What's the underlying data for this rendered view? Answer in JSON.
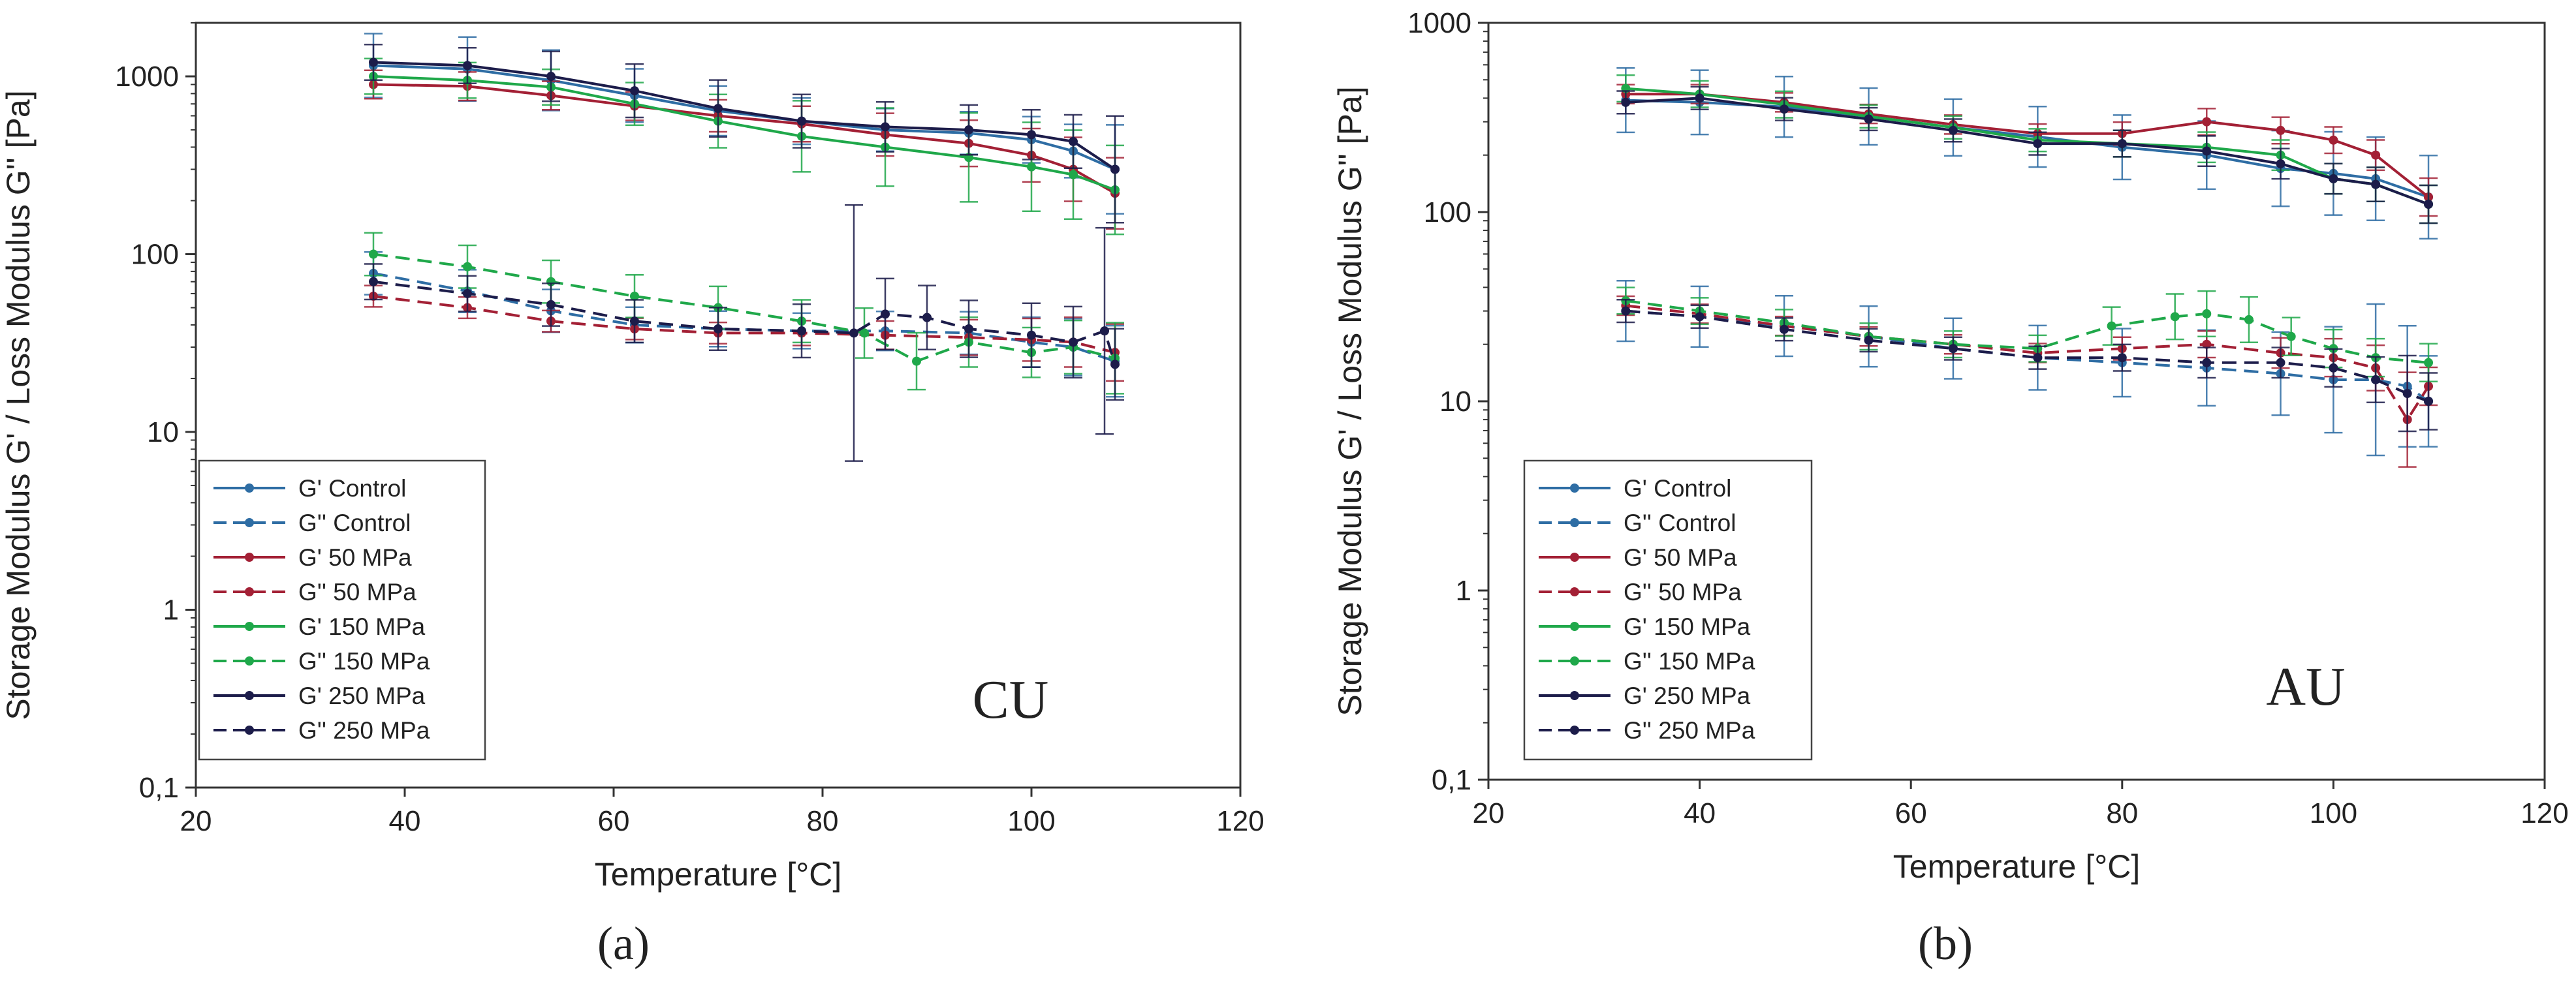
{
  "chart_data": [
    {
      "type": "line",
      "panel_tag": "CU",
      "sublabel": "(a)",
      "xlabel": "Temperature [°C]",
      "ylabel": "Storage Modulus G' / Loss Modulus G'' [Pa]",
      "xlim": [
        20,
        120
      ],
      "ylim": [
        0.1,
        2000
      ],
      "yscale": "log",
      "xticks": [
        20,
        40,
        60,
        80,
        100,
        120
      ],
      "yticks": [
        {
          "v": 0.1,
          "label": "0,1"
        },
        {
          "v": 1,
          "label": "1"
        },
        {
          "v": 10,
          "label": "10"
        },
        {
          "v": 100,
          "label": "100"
        },
        {
          "v": 1000,
          "label": "1000"
        }
      ],
      "grid": false,
      "legend_position": "lower-left",
      "series": [
        {
          "name": "G' Control",
          "color": "#2e6da4",
          "dash": "solid",
          "x": [
            37,
            46,
            54,
            62,
            70,
            78,
            86,
            94,
            100,
            104,
            108
          ],
          "y": [
            1150,
            1100,
            950,
            780,
            640,
            560,
            500,
            480,
            440,
            380,
            300
          ],
          "err": [
            0.18,
            0.18,
            0.17,
            0.15,
            0.14,
            0.13,
            0.12,
            0.12,
            0.13,
            0.15,
            0.25
          ]
        },
        {
          "name": "G'' Control",
          "color": "#2e6da4",
          "dash": "dashed",
          "x": [
            37,
            46,
            54,
            62,
            70,
            78,
            86,
            94,
            100,
            104,
            108
          ],
          "y": [
            78,
            62,
            48,
            40,
            38,
            37,
            37,
            36,
            32,
            30,
            25
          ],
          "err": [
            0.12,
            0.12,
            0.12,
            0.1,
            0.1,
            0.1,
            0.11,
            0.12,
            0.14,
            0.16,
            0.2
          ]
        },
        {
          "name": "G' 50 MPa",
          "color": "#a32035",
          "dash": "solid",
          "x": [
            37,
            46,
            54,
            62,
            70,
            78,
            86,
            94,
            100,
            104,
            108
          ],
          "y": [
            900,
            880,
            780,
            680,
            600,
            540,
            470,
            420,
            360,
            300,
            220
          ],
          "err": [
            0.08,
            0.08,
            0.08,
            0.08,
            0.09,
            0.1,
            0.12,
            0.13,
            0.15,
            0.18,
            0.2
          ]
        },
        {
          "name": "G'' 50 MPa",
          "color": "#a32035",
          "dash": "dashed",
          "x": [
            37,
            46,
            54,
            62,
            70,
            78,
            86,
            94,
            100,
            104,
            108
          ],
          "y": [
            58,
            50,
            42,
            38,
            36,
            36,
            35,
            34,
            33,
            32,
            28
          ],
          "err": [
            0.06,
            0.06,
            0.06,
            0.06,
            0.06,
            0.07,
            0.08,
            0.1,
            0.12,
            0.14,
            0.16
          ]
        },
        {
          "name": "G' 150 MPa",
          "color": "#1fa84a",
          "dash": "solid",
          "x": [
            37,
            46,
            54,
            62,
            70,
            78,
            86,
            94,
            100,
            104,
            108
          ],
          "y": [
            1000,
            950,
            870,
            700,
            560,
            460,
            400,
            350,
            310,
            280,
            230
          ],
          "err": [
            0.1,
            0.1,
            0.1,
            0.12,
            0.15,
            0.2,
            0.22,
            0.25,
            0.25,
            0.25,
            0.25
          ]
        },
        {
          "name": "G'' 150 MPa",
          "color": "#1fa84a",
          "dash": "dashed",
          "x": [
            37,
            46,
            54,
            62,
            70,
            78,
            84,
            89,
            94,
            100,
            104,
            108
          ],
          "y": [
            100,
            85,
            70,
            58,
            50,
            42,
            36,
            25,
            32,
            28,
            30,
            26
          ],
          "err": [
            0.12,
            0.12,
            0.12,
            0.12,
            0.12,
            0.12,
            0.14,
            0.16,
            0.14,
            0.14,
            0.15,
            0.2
          ]
        },
        {
          "name": "G' 250 MPa",
          "color": "#1c1c4a",
          "dash": "solid",
          "x": [
            37,
            46,
            54,
            62,
            70,
            78,
            86,
            94,
            100,
            104,
            108
          ],
          "y": [
            1200,
            1150,
            1000,
            830,
            660,
            560,
            520,
            500,
            470,
            430,
            300
          ],
          "err": [
            0.1,
            0.1,
            0.14,
            0.15,
            0.16,
            0.15,
            0.14,
            0.14,
            0.14,
            0.15,
            0.3
          ]
        },
        {
          "name": "G'' 250 MPa",
          "color": "#1c1c4a",
          "dash": "dashed",
          "x": [
            37,
            46,
            54,
            62,
            70,
            78,
            83,
            86,
            90,
            94,
            100,
            104,
            107,
            108
          ],
          "y": [
            70,
            60,
            52,
            42,
            38,
            37,
            36,
            46,
            44,
            38,
            35,
            32,
            37,
            24
          ],
          "err": [
            0.1,
            0.1,
            0.12,
            0.12,
            0.12,
            0.15,
            0.72,
            0.2,
            0.18,
            0.16,
            0.18,
            0.2,
            0.58,
            0.2
          ]
        }
      ]
    },
    {
      "type": "line",
      "panel_tag": "AU",
      "sublabel": "(b)",
      "xlabel": "Temperature [°C]",
      "ylabel": "Storage Modulus G' / Loss Modulus G'' [Pa]",
      "xlim": [
        20,
        120
      ],
      "ylim": [
        0.1,
        1000
      ],
      "yscale": "log",
      "xticks": [
        20,
        40,
        60,
        80,
        100,
        120
      ],
      "yticks": [
        {
          "v": 0.1,
          "label": "0,1"
        },
        {
          "v": 1,
          "label": "1"
        },
        {
          "v": 10,
          "label": "10"
        },
        {
          "v": 100,
          "label": "100"
        },
        {
          "v": 1000,
          "label": "1000"
        }
      ],
      "grid": false,
      "legend_position": "lower-left",
      "series": [
        {
          "name": "G' Control",
          "color": "#2e6da4",
          "dash": "solid",
          "x": [
            33,
            40,
            48,
            56,
            64,
            72,
            80,
            88,
            95,
            100,
            104,
            109
          ],
          "y": [
            390,
            380,
            360,
            320,
            280,
            250,
            220,
            200,
            170,
            160,
            150,
            120
          ],
          "err": [
            0.17,
            0.17,
            0.16,
            0.15,
            0.15,
            0.16,
            0.17,
            0.18,
            0.2,
            0.22,
            0.22,
            0.22
          ]
        },
        {
          "name": "G'' Control",
          "color": "#2e6da4",
          "dash": "dashed",
          "x": [
            33,
            40,
            48,
            56,
            64,
            72,
            80,
            88,
            95,
            100,
            104,
            107,
            109
          ],
          "y": [
            30,
            28,
            25,
            22,
            19,
            17,
            16,
            15,
            14,
            13,
            13,
            12,
            10
          ],
          "err": [
            0.16,
            0.16,
            0.16,
            0.16,
            0.16,
            0.17,
            0.18,
            0.2,
            0.22,
            0.28,
            0.4,
            0.32,
            0.24
          ]
        },
        {
          "name": "G' 50 MPa",
          "color": "#a32035",
          "dash": "solid",
          "x": [
            33,
            40,
            48,
            56,
            64,
            72,
            80,
            88,
            95,
            100,
            104,
            109
          ],
          "y": [
            420,
            420,
            380,
            330,
            290,
            260,
            260,
            300,
            270,
            240,
            200,
            120
          ],
          "err": [
            0.05,
            0.05,
            0.05,
            0.05,
            0.05,
            0.05,
            0.06,
            0.07,
            0.07,
            0.07,
            0.08,
            0.1
          ]
        },
        {
          "name": "G'' 50 MPa",
          "color": "#a32035",
          "dash": "dashed",
          "x": [
            33,
            40,
            48,
            56,
            64,
            72,
            80,
            88,
            95,
            100,
            104,
            107,
            109
          ],
          "y": [
            32,
            29,
            25,
            22,
            20,
            18,
            19,
            20,
            18,
            17,
            15,
            8,
            12
          ],
          "err": [
            0.05,
            0.05,
            0.05,
            0.05,
            0.05,
            0.05,
            0.06,
            0.07,
            0.08,
            0.1,
            0.12,
            0.25,
            0.1
          ]
        },
        {
          "name": "G' 150 MPa",
          "color": "#1fa84a",
          "dash": "solid",
          "x": [
            33,
            40,
            48,
            56,
            64,
            72,
            80,
            88,
            95,
            100,
            104,
            109
          ],
          "y": [
            450,
            420,
            370,
            320,
            280,
            240,
            230,
            220,
            200,
            150,
            140,
            110
          ],
          "err": [
            0.07,
            0.07,
            0.07,
            0.06,
            0.06,
            0.06,
            0.07,
            0.08,
            0.08,
            0.08,
            0.09,
            0.1
          ]
        },
        {
          "name": "G'' 150 MPa",
          "color": "#1fa84a",
          "dash": "dashed",
          "x": [
            33,
            40,
            48,
            56,
            64,
            72,
            79,
            85,
            88,
            92,
            96,
            100,
            104,
            109
          ],
          "y": [
            34,
            30,
            26,
            22,
            20,
            19,
            25,
            28,
            29,
            27,
            22,
            19,
            17,
            16
          ],
          "err": [
            0.07,
            0.07,
            0.07,
            0.07,
            0.07,
            0.07,
            0.1,
            0.12,
            0.12,
            0.12,
            0.1,
            0.1,
            0.1,
            0.1
          ]
        },
        {
          "name": "G' 250 MPa",
          "color": "#1c1c4a",
          "dash": "solid",
          "x": [
            33,
            40,
            48,
            56,
            64,
            72,
            80,
            88,
            95,
            100,
            104,
            109
          ],
          "y": [
            380,
            400,
            350,
            310,
            270,
            230,
            230,
            210,
            180,
            150,
            140,
            110
          ],
          "err": [
            0.06,
            0.06,
            0.06,
            0.06,
            0.06,
            0.06,
            0.07,
            0.08,
            0.08,
            0.08,
            0.09,
            0.1
          ]
        },
        {
          "name": "G'' 250 MPa",
          "color": "#1c1c4a",
          "dash": "dashed",
          "x": [
            33,
            40,
            48,
            56,
            64,
            72,
            80,
            88,
            95,
            100,
            104,
            107,
            109
          ],
          "y": [
            30,
            28,
            24,
            21,
            19,
            17,
            17,
            16,
            16,
            15,
            13,
            11,
            10
          ],
          "err": [
            0.06,
            0.06,
            0.06,
            0.06,
            0.06,
            0.06,
            0.07,
            0.08,
            0.08,
            0.1,
            0.12,
            0.2,
            0.15
          ]
        }
      ]
    }
  ]
}
